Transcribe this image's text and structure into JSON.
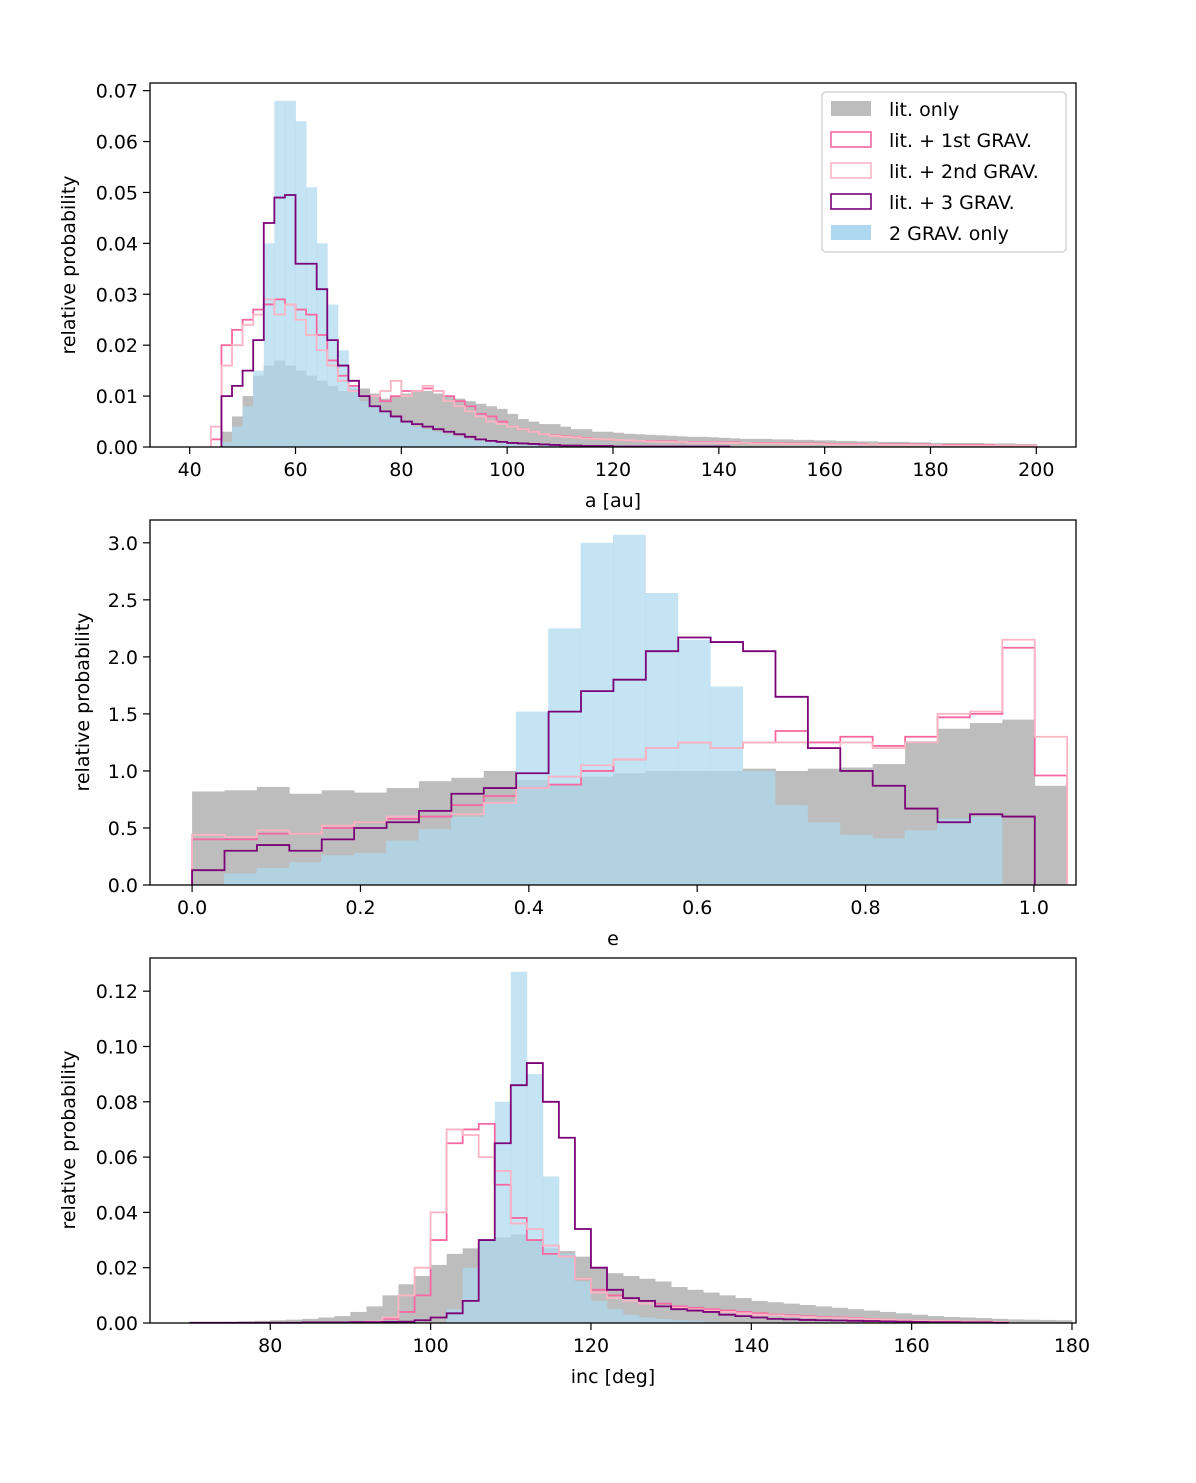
{
  "colors": {
    "lit_only": "#bdbdbd",
    "lit_1st": "#f768a1",
    "lit_2nd": "#fbb4c4",
    "lit_3": "#7a0177",
    "grav_only": "#add8ef"
  },
  "chart_data": [
    {
      "type": "histogram",
      "xlabel": "a [au]",
      "ylabel": "relative probability",
      "xlim": [
        32.5,
        207.5
      ],
      "ylim": [
        0,
        0.0715
      ],
      "xticks": [
        40,
        60,
        80,
        100,
        120,
        140,
        160,
        180,
        200
      ],
      "xtick_labels": [
        "40",
        "60",
        "80",
        "100",
        "120",
        "140",
        "160",
        "180",
        "200"
      ],
      "yticks": [
        0,
        0.01,
        0.02,
        0.03,
        0.04,
        0.05,
        0.06,
        0.07
      ],
      "ytick_labels": [
        "0.00",
        "0.01",
        "0.02",
        "0.03",
        "0.04",
        "0.05",
        "0.06",
        "0.07"
      ],
      "legend": {
        "position": "top-right",
        "entries": [
          {
            "key": "lit_only",
            "label": "lit. only",
            "style": "fill"
          },
          {
            "key": "lit_1st",
            "label": "lit. + 1st GRAV.",
            "style": "step"
          },
          {
            "key": "lit_2nd",
            "label": "lit. + 2nd GRAV.",
            "style": "step"
          },
          {
            "key": "lit_3",
            "label": "lit. + 3 GRAV.",
            "style": "step"
          },
          {
            "key": "grav_only",
            "label": "2 GRAV. only",
            "style": "fill"
          }
        ]
      },
      "series": [
        {
          "key": "lit_only",
          "style": "fill",
          "x0": 46,
          "dx": 2,
          "values": [
            0.003,
            0.006,
            0.01,
            0.014,
            0.016,
            0.017,
            0.016,
            0.015,
            0.014,
            0.013,
            0.012,
            0.011,
            0.0115,
            0.0115,
            0.0105,
            0.0095,
            0.01,
            0.0105,
            0.0112,
            0.011,
            0.0105,
            0.01,
            0.0095,
            0.009,
            0.0085,
            0.008,
            0.0075,
            0.0065,
            0.0055,
            0.005,
            0.0045,
            0.0045,
            0.004,
            0.0035,
            0.0035,
            0.003,
            0.003,
            0.0028,
            0.0026,
            0.0025,
            0.0024,
            0.0023,
            0.0022,
            0.0021,
            0.002,
            0.002,
            0.0019,
            0.0018,
            0.0017,
            0.0016,
            0.0016,
            0.0016,
            0.0015,
            0.0015,
            0.0014,
            0.0014,
            0.0013,
            0.0013,
            0.0012,
            0.0012,
            0.0011,
            0.0011,
            0.001,
            0.001,
            0.001,
            0.0009,
            0.0009,
            0.0008,
            0.0008,
            0.0008,
            0.0008,
            0.0008,
            0.0007,
            0.0007,
            0.0007,
            0.0006,
            0.0006
          ]
        },
        {
          "key": "grav_only",
          "style": "fill",
          "x0": 46,
          "dx": 2,
          "values": [
            0.001,
            0.004,
            0.008,
            0.015,
            0.04,
            0.068,
            0.068,
            0.064,
            0.051,
            0.04,
            0.028,
            0.019,
            0.012,
            0.009,
            0.008,
            0.007,
            0.006,
            0.005,
            0.004,
            0.0035,
            0.003,
            0.0025,
            0.002,
            0.0015,
            0.0012,
            0.001,
            0.0008,
            0.0006,
            0.0005,
            0.0004,
            0.0003,
            0.0003,
            0.0002,
            0.0002,
            0.0002,
            0.0001,
            0.0001,
            0.0001,
            0.0001,
            0.0001
          ]
        },
        {
          "key": "lit_1st",
          "style": "step",
          "x0": 44,
          "dx": 2,
          "values": [
            0.0015,
            0.02,
            0.023,
            0.025,
            0.027,
            0.028,
            0.029,
            0.028,
            0.027,
            0.026,
            0.022,
            0.017,
            0.014,
            0.012,
            0.01,
            0.01,
            0.009,
            0.01,
            0.011,
            0.011,
            0.0115,
            0.011,
            0.01,
            0.009,
            0.008,
            0.0065,
            0.006,
            0.005,
            0.004,
            0.0035,
            0.003,
            0.0025,
            0.0023,
            0.0021,
            0.002,
            0.0018,
            0.0016,
            0.0015,
            0.0014,
            0.0013,
            0.0012,
            0.0012,
            0.0011,
            0.0011,
            0.001,
            0.001,
            0.001,
            0.001,
            0.0009,
            0.0009,
            0.0008,
            0.0008,
            0.0008,
            0.0008,
            0.0007,
            0.0007,
            0.0007,
            0.0007,
            0.0006,
            0.0006,
            0.0006,
            0.0006,
            0.0005,
            0.0005,
            0.0005,
            0.0005,
            0.0005,
            0.0005,
            0.0004,
            0.0004,
            0.0004,
            0.0004,
            0.0004,
            0.0004,
            0.0003,
            0.0003,
            0.0003,
            0.0003
          ]
        },
        {
          "key": "lit_2nd",
          "style": "step",
          "x0": 44,
          "dx": 2,
          "values": [
            0.004,
            0.016,
            0.02,
            0.024,
            0.026,
            0.029,
            0.026,
            0.028,
            0.025,
            0.022,
            0.019,
            0.016,
            0.013,
            0.011,
            0.01,
            0.01,
            0.011,
            0.013,
            0.01,
            0.011,
            0.012,
            0.011,
            0.009,
            0.008,
            0.007,
            0.006,
            0.005,
            0.0045,
            0.004,
            0.0035,
            0.003,
            0.0025,
            0.0022,
            0.002,
            0.0019,
            0.0017,
            0.0016,
            0.0015,
            0.0014,
            0.0013,
            0.0012,
            0.0011,
            0.001,
            0.001,
            0.001,
            0.0009,
            0.0009,
            0.0009,
            0.0008,
            0.0008,
            0.0008,
            0.0007,
            0.0007,
            0.0007,
            0.0006,
            0.0006,
            0.0006,
            0.0006,
            0.0005,
            0.0005,
            0.0005,
            0.0005,
            0.0005,
            0.0004,
            0.0004,
            0.0004,
            0.0004,
            0.0004,
            0.0004,
            0.0003,
            0.0003,
            0.0003,
            0.0003,
            0.0003,
            0.0003,
            0.0003,
            0.0003,
            0.0003
          ]
        },
        {
          "key": "lit_3",
          "style": "step",
          "x0": 46,
          "dx": 2,
          "values": [
            0.01,
            0.012,
            0.015,
            0.021,
            0.044,
            0.049,
            0.0495,
            0.036,
            0.036,
            0.031,
            0.021,
            0.016,
            0.013,
            0.01,
            0.008,
            0.007,
            0.006,
            0.005,
            0.0045,
            0.004,
            0.0035,
            0.003,
            0.0025,
            0.002,
            0.0015,
            0.0012,
            0.001,
            0.0008,
            0.0007,
            0.0006,
            0.0005,
            0.0004,
            0.0003,
            0.0003,
            0.0002,
            0.0002,
            0.0002,
            0.0001,
            0.0001,
            0.0001,
            0.0001,
            0.0001,
            0.0001,
            0.0001,
            0.0001,
            0.0001,
            0.0001,
            0.0001
          ]
        }
      ]
    },
    {
      "type": "histogram",
      "xlabel": "e",
      "ylabel": "relative probability",
      "xlim": [
        -0.05,
        1.05
      ],
      "ylim": [
        0,
        3.2
      ],
      "xticks": [
        0,
        0.2,
        0.4,
        0.6,
        0.8,
        1.0
      ],
      "xtick_labels": [
        "0.0",
        "0.2",
        "0.4",
        "0.6",
        "0.8",
        "1.0"
      ],
      "yticks": [
        0,
        0.5,
        1.0,
        1.5,
        2.0,
        2.5,
        3.0
      ],
      "ytick_labels": [
        "0.0",
        "0.5",
        "1.0",
        "1.5",
        "2.0",
        "2.5",
        "3.0"
      ],
      "series": [
        {
          "key": "lit_only",
          "style": "fill",
          "x0": 0,
          "dx": 0.0385,
          "values": [
            0.82,
            0.83,
            0.86,
            0.8,
            0.83,
            0.81,
            0.85,
            0.91,
            0.94,
            1.0,
            0.92,
            0.89,
            0.95,
            0.98,
            1.0,
            1.0,
            1.0,
            1.02,
            1.0,
            1.02,
            1.03,
            1.06,
            1.26,
            1.37,
            1.42,
            1.45,
            0.87
          ]
        },
        {
          "key": "grav_only",
          "style": "fill",
          "x0": 0.038,
          "dx": 0.0385,
          "values": [
            0.1,
            0.15,
            0.2,
            0.26,
            0.28,
            0.39,
            0.49,
            0.6,
            0.73,
            1.52,
            2.25,
            3.0,
            3.07,
            2.56,
            2.15,
            1.74,
            1.0,
            0.7,
            0.55,
            0.44,
            0.41,
            0.48,
            0.58,
            0.6
          ]
        },
        {
          "key": "lit_1st",
          "style": "step",
          "x0": 0,
          "dx": 0.0385,
          "values": [
            0.4,
            0.4,
            0.45,
            0.45,
            0.5,
            0.55,
            0.58,
            0.6,
            0.7,
            0.78,
            0.85,
            0.88,
            1.0,
            1.1,
            1.2,
            1.25,
            1.2,
            1.25,
            1.35,
            1.25,
            1.3,
            1.22,
            1.3,
            1.47,
            1.5,
            2.08,
            0.96
          ]
        },
        {
          "key": "lit_2nd",
          "style": "step",
          "x0": 0,
          "dx": 0.0385,
          "values": [
            0.44,
            0.42,
            0.48,
            0.45,
            0.52,
            0.55,
            0.6,
            0.65,
            0.62,
            0.72,
            0.85,
            0.95,
            1.05,
            1.1,
            1.2,
            1.25,
            1.2,
            1.25,
            1.25,
            1.2,
            1.25,
            1.2,
            1.25,
            1.5,
            1.52,
            2.15,
            1.3
          ]
        },
        {
          "key": "lit_3",
          "style": "step",
          "x0": 0,
          "dx": 0.0385,
          "values": [
            0.13,
            0.3,
            0.35,
            0.3,
            0.4,
            0.5,
            0.55,
            0.65,
            0.8,
            0.85,
            0.98,
            1.52,
            1.7,
            1.8,
            2.05,
            2.17,
            2.13,
            2.05,
            1.65,
            1.2,
            1.0,
            0.87,
            0.67,
            0.55,
            0.62,
            0.6
          ]
        }
      ]
    },
    {
      "type": "histogram",
      "xlabel": "inc [deg]",
      "ylabel": "relative probability",
      "xlim": [
        65,
        180.5
      ],
      "ylim": [
        0,
        0.132
      ],
      "xticks": [
        80,
        100,
        120,
        140,
        160,
        180
      ],
      "xtick_labels": [
        "80",
        "100",
        "120",
        "140",
        "160",
        "180"
      ],
      "yticks": [
        0,
        0.02,
        0.04,
        0.06,
        0.08,
        0.1,
        0.12
      ],
      "ytick_labels": [
        "0.00",
        "0.02",
        "0.04",
        "0.06",
        "0.08",
        "0.10",
        "0.12"
      ],
      "series": [
        {
          "key": "lit_only",
          "style": "fill",
          "x0": 70,
          "dx": 2,
          "values": [
            0.0002,
            0.0003,
            0.0004,
            0.0006,
            0.0008,
            0.001,
            0.0012,
            0.0015,
            0.002,
            0.0025,
            0.004,
            0.006,
            0.01,
            0.014,
            0.017,
            0.021,
            0.025,
            0.027,
            0.03,
            0.031,
            0.032,
            0.03,
            0.027,
            0.026,
            0.024,
            0.02,
            0.018,
            0.017,
            0.016,
            0.015,
            0.013,
            0.012,
            0.011,
            0.01,
            0.009,
            0.008,
            0.0075,
            0.007,
            0.0065,
            0.006,
            0.0055,
            0.005,
            0.0045,
            0.004,
            0.0035,
            0.003,
            0.0025,
            0.0022,
            0.002,
            0.0018,
            0.0015,
            0.0013,
            0.0012,
            0.0011,
            0.001
          ]
        },
        {
          "key": "grav_only",
          "style": "fill",
          "x0": 102,
          "dx": 2,
          "values": [
            0.005,
            0.02,
            0.03,
            0.08,
            0.127,
            0.09,
            0.053,
            0.025,
            0.015,
            0.008,
            0.005,
            0.003,
            0.002,
            0.0015,
            0.001,
            0.0008,
            0.0005,
            0.0003
          ]
        },
        {
          "key": "lit_1st",
          "style": "step",
          "x0": 90,
          "dx": 2,
          "values": [
            0.0003,
            0.0005,
            0.0015,
            0.004,
            0.01,
            0.03,
            0.065,
            0.07,
            0.072,
            0.05,
            0.038,
            0.03,
            0.025,
            0.024,
            0.016,
            0.012,
            0.01,
            0.009,
            0.008,
            0.007,
            0.006,
            0.0055,
            0.005,
            0.0045,
            0.004,
            0.0035,
            0.003,
            0.0028,
            0.0025,
            0.0022,
            0.002,
            0.0018,
            0.0015,
            0.0012,
            0.001,
            0.0009,
            0.0008,
            0.0007,
            0.0006,
            0.0005,
            0.0004
          ]
        },
        {
          "key": "lit_2nd",
          "style": "step",
          "x0": 90,
          "dx": 2,
          "values": [
            0.0003,
            0.0006,
            0.002,
            0.01,
            0.02,
            0.04,
            0.07,
            0.068,
            0.06,
            0.055,
            0.036,
            0.034,
            0.028,
            0.024,
            0.016,
            0.011,
            0.009,
            0.008,
            0.007,
            0.006,
            0.0055,
            0.005,
            0.0045,
            0.004,
            0.0035,
            0.003,
            0.0028,
            0.0025,
            0.0022,
            0.002,
            0.0018,
            0.0016,
            0.0014,
            0.0012,
            0.001,
            0.0009,
            0.0008,
            0.0007,
            0.0006,
            0.0005,
            0.0004
          ]
        },
        {
          "key": "lit_3",
          "style": "step",
          "x0": 70,
          "dx": 2,
          "values": [
            0.0001,
            0.0001,
            0.0001,
            0.0001,
            0.0001,
            0.0001,
            0.0001,
            0.0002,
            0.0002,
            0.0002,
            0.0003,
            0.0003,
            0.0004,
            0.0005,
            0.001,
            0.002,
            0.0035,
            0.008,
            0.03,
            0.065,
            0.086,
            0.094,
            0.08,
            0.067,
            0.034,
            0.02,
            0.012,
            0.009,
            0.008,
            0.006,
            0.005,
            0.0045,
            0.004,
            0.003,
            0.0025,
            0.002,
            0.0015,
            0.0013,
            0.0011,
            0.001,
            0.0009,
            0.0008,
            0.0007,
            0.0006,
            0.0005,
            0.0004,
            0.0003,
            0.0003,
            0.0002,
            0.0002,
            0.0001
          ]
        }
      ]
    }
  ]
}
